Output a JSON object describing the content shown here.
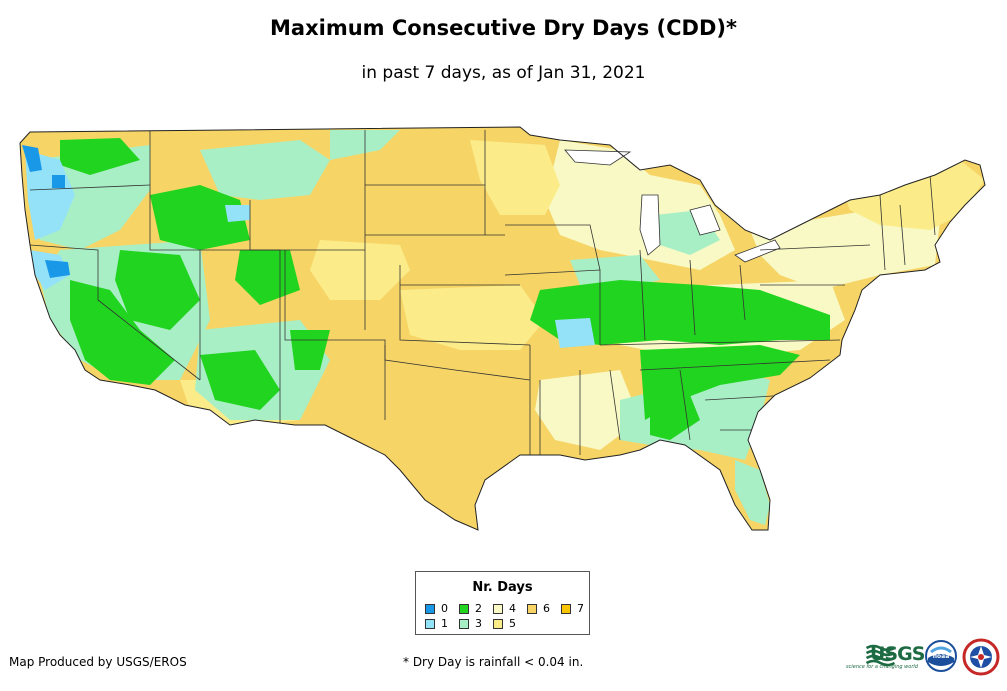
{
  "title": "Maximum Consecutive Dry Days (CDD)*",
  "subtitle": "in past 7 days, as of Jan 31, 2021",
  "legend": {
    "title": "Nr. Days",
    "items": [
      {
        "label": "0",
        "color": "#1a98e8"
      },
      {
        "label": "1",
        "color": "#93e2f7"
      },
      {
        "label": "2",
        "color": "#21d41f"
      },
      {
        "label": "3",
        "color": "#a9efc6"
      },
      {
        "label": "4",
        "color": "#f8f9c4"
      },
      {
        "label": "5",
        "color": "#fbec89"
      },
      {
        "label": "6",
        "color": "#f6d466"
      },
      {
        "label": "7",
        "color": "#f8c500"
      }
    ]
  },
  "credit": "Map Produced by USGS/EROS",
  "footnote": "* Dry Day is rainfall < 0.04 in.",
  "logos": {
    "usgs": "USGS",
    "usgs_tagline": "science for a changing world",
    "noaa": "noaa"
  },
  "icons": [
    "usgs-logo-icon",
    "noaa-logo-icon",
    "nws-logo-icon"
  ]
}
